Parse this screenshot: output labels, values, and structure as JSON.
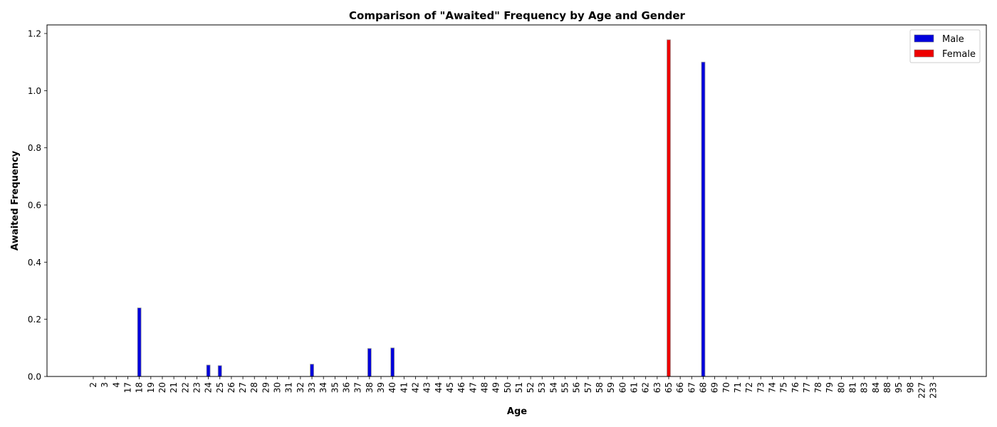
{
  "chart_data": {
    "type": "bar",
    "title": "Comparison of \"Awaited\" Frequency by Age and Gender",
    "xlabel": "Age",
    "ylabel": "Awaited Frequency",
    "ylim": [
      0,
      1.23
    ],
    "yticks": [
      0.0,
      0.2,
      0.4,
      0.6,
      0.8,
      1.0,
      1.2
    ],
    "ytick_labels": [
      "0.0",
      "0.2",
      "0.4",
      "0.6",
      "0.8",
      "1.0",
      "1.2"
    ],
    "categories": [
      "2",
      "3",
      "4",
      "17",
      "18",
      "19",
      "20",
      "21",
      "22",
      "23",
      "24",
      "25",
      "26",
      "27",
      "28",
      "29",
      "30",
      "31",
      "32",
      "33",
      "34",
      "35",
      "36",
      "37",
      "38",
      "39",
      "40",
      "41",
      "42",
      "43",
      "44",
      "45",
      "46",
      "47",
      "48",
      "49",
      "50",
      "51",
      "52",
      "53",
      "54",
      "55",
      "56",
      "57",
      "58",
      "59",
      "60",
      "61",
      "62",
      "63",
      "65",
      "66",
      "67",
      "68",
      "69",
      "70",
      "71",
      "72",
      "73",
      "74",
      "75",
      "76",
      "77",
      "78",
      "79",
      "80",
      "81",
      "83",
      "84",
      "88",
      "95",
      "98",
      "227",
      "233"
    ],
    "series": [
      {
        "name": "Male",
        "color": "#0000dd",
        "values": {
          "18": 0.24,
          "24": 0.04,
          "25": 0.038,
          "33": 0.043,
          "38": 0.098,
          "40": 0.1,
          "68": 1.1
        }
      },
      {
        "name": "Female",
        "color": "#ee0000",
        "values": {
          "65": 1.178
        }
      }
    ],
    "legend_position": "top-right",
    "grid": false
  }
}
